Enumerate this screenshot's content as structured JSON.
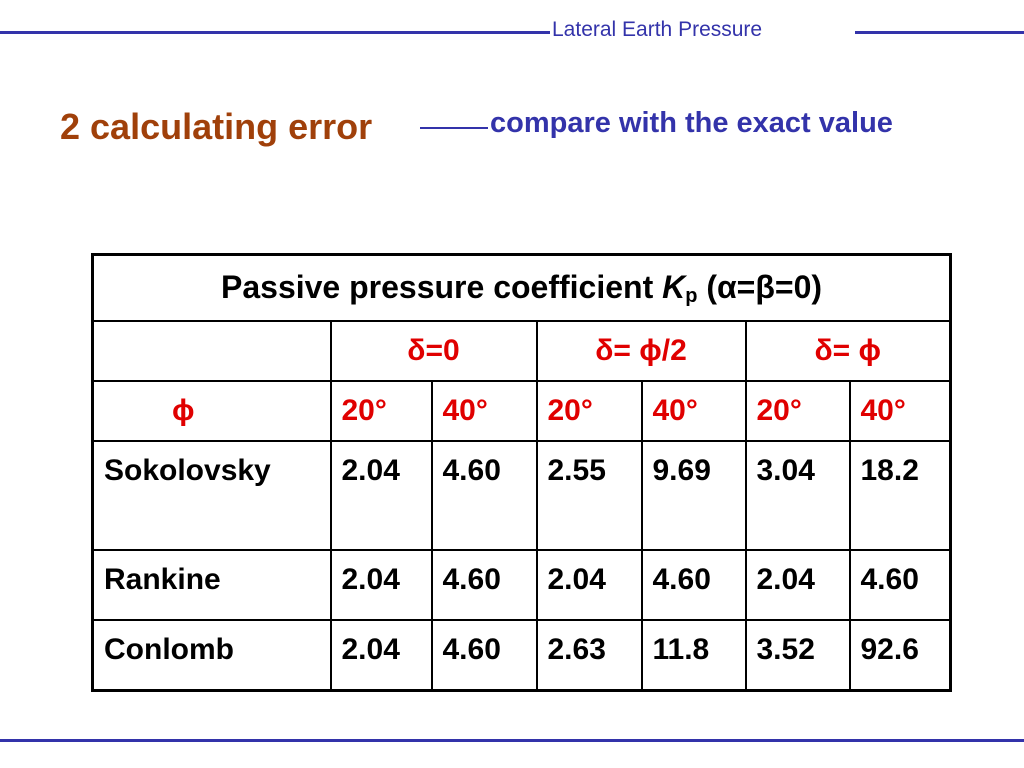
{
  "header": {
    "title": "Lateral Earth Pressure"
  },
  "slide": {
    "title": "2 calculating error",
    "subtitle": "compare with the exact value"
  },
  "table": {
    "caption_main": "Passive pressure coefficient ",
    "caption_symbol": "K",
    "caption_subscript": "p",
    "caption_condition": " (α=β=0)",
    "delta_headers": [
      "δ=0",
      "δ= ϕ/2",
      "δ= ϕ"
    ],
    "phi_label": "ϕ",
    "phi_values": [
      "20°",
      "40°",
      "20°",
      "40°",
      "20°",
      "40°"
    ],
    "rows": [
      {
        "method": "Sokolovsky",
        "values": [
          "2.04",
          "4.60",
          "2.55",
          "9.69",
          "3.04",
          "18.2"
        ]
      },
      {
        "method": "Rankine",
        "values": [
          "2.04",
          "4.60",
          "2.04",
          "4.60",
          "2.04",
          "4.60"
        ]
      },
      {
        "method": "Conlomb",
        "values": [
          "2.04",
          "4.60",
          "2.63",
          "11.8",
          "3.52",
          "92.6"
        ]
      }
    ]
  },
  "colors": {
    "header_line": "#3333aa",
    "title": "#a0400a",
    "subtitle": "#3333aa",
    "table_header_text": "#e00000"
  }
}
